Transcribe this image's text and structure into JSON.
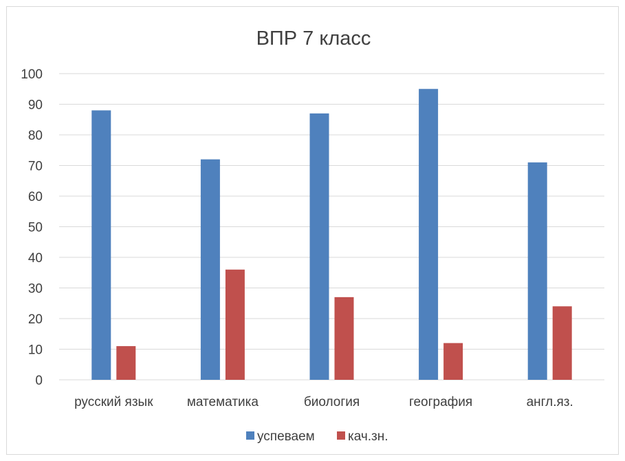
{
  "chart_data": {
    "type": "bar",
    "title": "ВПР 7 класс",
    "categories": [
      "русский язык",
      "математика",
      "биология",
      "география",
      "англ.яз."
    ],
    "series": [
      {
        "name": "успеваем",
        "color": "#4f81bd",
        "values": [
          88,
          72,
          87,
          95,
          71
        ]
      },
      {
        "name": "кач.зн.",
        "color": "#c0504d",
        "values": [
          11,
          36,
          27,
          12,
          24
        ]
      }
    ],
    "ylim": [
      0,
      100
    ],
    "yticks": [
      0,
      10,
      20,
      30,
      40,
      50,
      60,
      70,
      80,
      90,
      100
    ],
    "grid": true,
    "legend_position": "bottom"
  }
}
